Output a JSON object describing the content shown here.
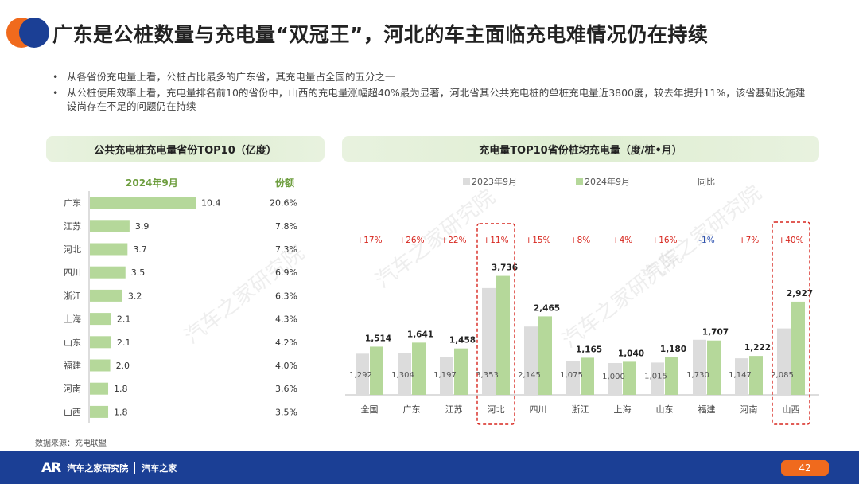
{
  "title": "广东是公桩数量与充电量“双冠王”，河北的车主面临充电难情况仍在持续",
  "bullets": [
    "从各省份充电量上看，公桩占比最多的广东省，其充电量占全国的五分之一",
    "从公桩使用效率上看，充电量排名前10的省份中，山西的充电量涨幅超40%最为显著，河北省其公共充电桩的单桩充电量近3800度，较去年提升11%，该省基础设施建设尚存在不足的问题仍在持续"
  ],
  "left_panel": {
    "title": "公共充电桩充电量省份TOP10（亿度）",
    "period_label": "2024年9月",
    "share_label": "份额"
  },
  "right_panel": {
    "title": "充电量TOP10省份桩均充电量（度/桩•月）"
  },
  "source": "数据来源：充电联盟",
  "footer": {
    "brand_logo": "AR",
    "brand_name": "汽车之家研究院",
    "brand_sub": "汽车之家",
    "page_number": "42"
  },
  "watermark": "汽车之家研究院",
  "colors": {
    "accent_orange": "#f06a1d",
    "brand_blue": "#1b3f95",
    "bar_green": "#b5d89a",
    "bar_gray": "#dcdcdc",
    "positive_red": "#d7261e",
    "negative_blue": "#2a4fb0",
    "highlight_border": "#d7261e"
  },
  "chart_data": [
    {
      "type": "bar",
      "orientation": "horizontal",
      "title": "公共充电桩充电量省份TOP10（亿度）",
      "categories": [
        "广东",
        "江苏",
        "河北",
        "四川",
        "浙江",
        "上海",
        "山东",
        "福建",
        "河南",
        "山西"
      ],
      "values": [
        10.4,
        3.9,
        3.7,
        3.5,
        3.2,
        2.1,
        2.1,
        2.0,
        1.8,
        1.8
      ],
      "value_labels": [
        "10.4",
        "3.9",
        "3.7",
        "3.5",
        "3.2",
        "2.1",
        "2.1",
        "2.0",
        "1.8",
        "1.8"
      ],
      "shares": [
        "20.6%",
        "7.8%",
        "7.3%",
        "6.9%",
        "6.3%",
        "4.3%",
        "4.2%",
        "4.0%",
        "3.6%",
        "3.5%"
      ],
      "series_name": "2024年9月"
    },
    {
      "type": "bar",
      "title": "充电量TOP10省份桩均充电量（度/桩•月）",
      "categories": [
        "全国",
        "广东",
        "江苏",
        "河北",
        "四川",
        "浙江",
        "上海",
        "山东",
        "福建",
        "河南",
        "山西"
      ],
      "series": [
        {
          "name": "2023年9月",
          "values": [
            1292,
            1304,
            1197,
            3353,
            2145,
            1075,
            1000,
            1015,
            1730,
            1147,
            2085
          ],
          "labels": [
            "1,292",
            "1,304",
            "1,197",
            "3,353",
            "2,145",
            "1,075",
            "1,000",
            "1,015",
            "1,730",
            "1,147",
            "2,085"
          ]
        },
        {
          "name": "2024年9月",
          "values": [
            1514,
            1641,
            1458,
            3736,
            2465,
            1165,
            1040,
            1180,
            1707,
            1222,
            2927
          ],
          "labels": [
            "1,514",
            "1,641",
            "1,458",
            "3,736",
            "2,465",
            "1,165",
            "1,040",
            "1,180",
            "1,707",
            "1,222",
            "2,927"
          ]
        }
      ],
      "yoy_label": "同比",
      "yoy": [
        "+17%",
        "+26%",
        "+22%",
        "+11%",
        "+15%",
        "+8%",
        "+4%",
        "+16%",
        "-1%",
        "+7%",
        "+40%"
      ],
      "highlighted": [
        "河北",
        "山西"
      ]
    }
  ]
}
